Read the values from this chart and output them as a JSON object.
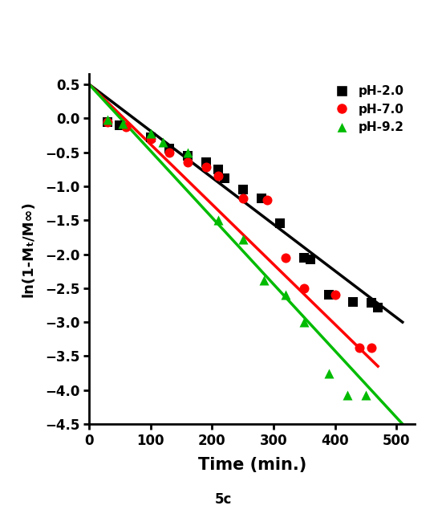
{
  "title": "",
  "xlabel": "Time (min.)",
  "ylabel": "ln(1-Mₜ/M∞)",
  "xlim": [
    0,
    530
  ],
  "ylim": [
    -4.5,
    0.65
  ],
  "yticks": [
    0.5,
    0.0,
    -0.5,
    -1.0,
    -1.5,
    -2.0,
    -2.5,
    -3.0,
    -3.5,
    -4.0,
    -4.5
  ],
  "xticks": [
    0,
    100,
    200,
    300,
    400,
    500
  ],
  "caption": "5c",
  "scatter_ph20": {
    "x": [
      30,
      50,
      100,
      130,
      160,
      190,
      210,
      220,
      250,
      280,
      310,
      350,
      360,
      390,
      430,
      460,
      470
    ],
    "y": [
      -0.05,
      -0.1,
      -0.28,
      -0.45,
      -0.55,
      -0.65,
      -0.75,
      -0.88,
      -1.05,
      -1.18,
      -1.55,
      -2.05,
      -2.08,
      -2.6,
      -2.7,
      -2.72,
      -2.78
    ]
  },
  "scatter_ph70": {
    "x": [
      30,
      60,
      100,
      130,
      160,
      190,
      210,
      250,
      290,
      320,
      350,
      400,
      440,
      460
    ],
    "y": [
      -0.05,
      -0.12,
      -0.3,
      -0.5,
      -0.65,
      -0.72,
      -0.85,
      -1.18,
      -1.2,
      -2.05,
      -2.5,
      -2.6,
      -3.38,
      -3.38
    ]
  },
  "scatter_ph92": {
    "x": [
      30,
      55,
      100,
      120,
      160,
      210,
      250,
      285,
      320,
      350,
      390,
      420,
      450
    ],
    "y": [
      -0.02,
      -0.08,
      -0.22,
      -0.35,
      -0.5,
      -1.5,
      -1.78,
      -2.38,
      -2.6,
      -3.0,
      -3.75,
      -4.08,
      -4.08
    ]
  },
  "line_ph20": {
    "x": [
      0,
      510
    ],
    "y": [
      0.5,
      -3.0
    ],
    "color": "#000000",
    "lw": 2.5
  },
  "line_ph70": {
    "x": [
      0,
      470
    ],
    "y": [
      0.5,
      -3.65
    ],
    "color": "#ff0000",
    "lw": 2.5
  },
  "line_ph92": {
    "x": [
      0,
      510
    ],
    "y": [
      0.5,
      -4.5
    ],
    "color": "#00bb00",
    "lw": 2.5
  },
  "color_ph20": "#000000",
  "color_ph70": "#ff0000",
  "color_ph92": "#00bb00",
  "bg_color": "#ffffff",
  "legend_labels": [
    "pH-2.0",
    "pH-7.0",
    "pH-9.2"
  ],
  "legend_colors": [
    "#000000",
    "#ff0000",
    "#00bb00"
  ],
  "legend_markers": [
    "s",
    "o",
    "^"
  ]
}
